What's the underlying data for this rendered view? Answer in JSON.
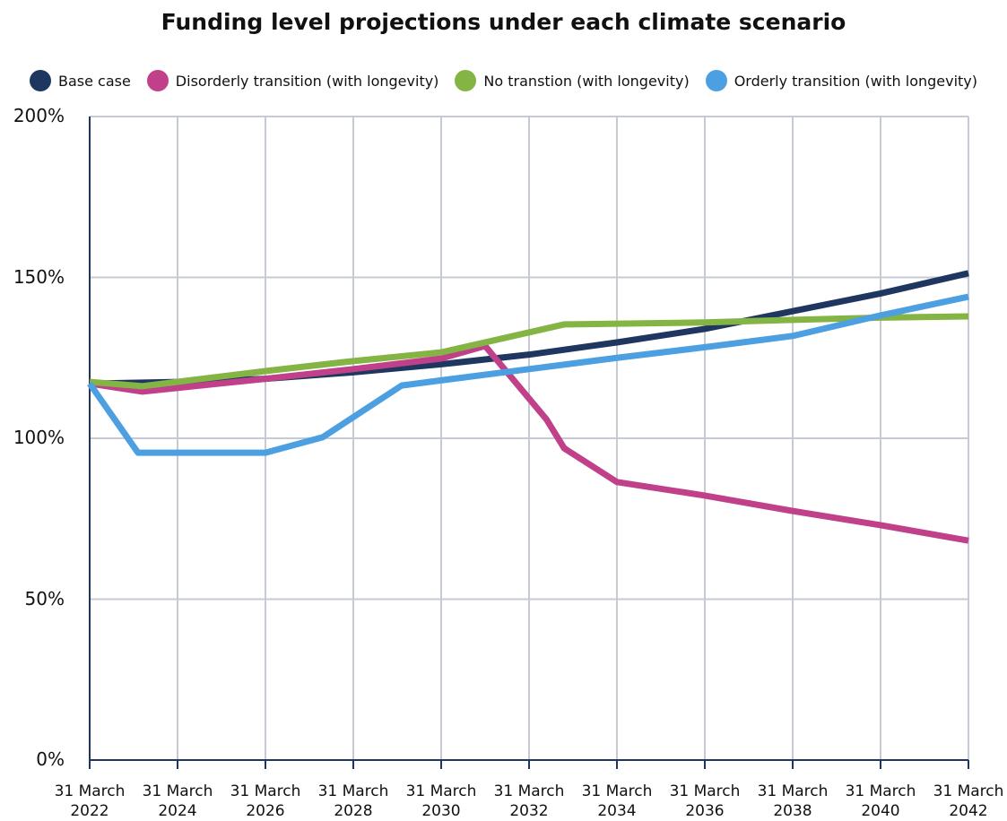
{
  "chart_data": {
    "type": "line",
    "title": "Funding level projections under each climate scenario",
    "xlim": [
      2022,
      2042
    ],
    "xticks": [
      {
        "value": 2022,
        "label": "31 March 2022"
      },
      {
        "value": 2024,
        "label": "31 March 2024"
      },
      {
        "value": 2026,
        "label": "31 March 2026"
      },
      {
        "value": 2028,
        "label": "31 March 2028"
      },
      {
        "value": 2030,
        "label": "31 March 2030"
      },
      {
        "value": 2032,
        "label": "31 March 2032"
      },
      {
        "value": 2034,
        "label": "31 March 2034"
      },
      {
        "value": 2036,
        "label": "31 March 2036"
      },
      {
        "value": 2038,
        "label": "31 March 2038"
      },
      {
        "value": 2040,
        "label": "31 March 2040"
      },
      {
        "value": 2042,
        "label": "31 March 2042"
      }
    ],
    "ylim": [
      0,
      200
    ],
    "yticks": [
      {
        "value": 0,
        "label": "0%"
      },
      {
        "value": 50,
        "label": "50%"
      },
      {
        "value": 100,
        "label": "100%"
      },
      {
        "value": 150,
        "label": "150%"
      },
      {
        "value": 200,
        "label": "200%"
      }
    ],
    "grid": true,
    "legend": "top",
    "series": [
      {
        "name": "Base case",
        "color": "#1f3660",
        "x": [
          2022,
          2024,
          2026,
          2028,
          2030,
          2032,
          2034,
          2036,
          2038,
          2040,
          2042
        ],
        "values": [
          117,
          117.5,
          118.5,
          120.5,
          123,
          126,
          129.8,
          134,
          139.5,
          145,
          151.3
        ]
      },
      {
        "name": "Disorderly transition (with longevity)",
        "color": "#c0408a",
        "x": [
          2022,
          2023.2,
          2026,
          2028,
          2030,
          2031,
          2032.4,
          2032.8,
          2034,
          2036,
          2038,
          2040,
          2042
        ],
        "values": [
          117,
          114.5,
          118.5,
          121.5,
          124.8,
          128.7,
          105.8,
          96.9,
          86.4,
          82.2,
          77.4,
          73,
          68.2
        ]
      },
      {
        "name": "No transtion (with longevity)",
        "color": "#84b443",
        "x": [
          2022,
          2023.2,
          2026,
          2028,
          2030,
          2032.8,
          2036,
          2038,
          2040,
          2042
        ],
        "values": [
          117.5,
          116.2,
          120.9,
          124,
          126.7,
          135.4,
          136,
          136.8,
          137.5,
          137.9
        ]
      },
      {
        "name": "Orderly transition (with longevity)",
        "color": "#4c9fe0",
        "x": [
          2022,
          2023.1,
          2026,
          2027.3,
          2029.1,
          2030,
          2032,
          2034,
          2036,
          2038,
          2040,
          2042
        ],
        "values": [
          117,
          95.5,
          95.5,
          100.3,
          116.4,
          118,
          121.5,
          125,
          128.3,
          131.8,
          138.2,
          144
        ]
      }
    ]
  }
}
